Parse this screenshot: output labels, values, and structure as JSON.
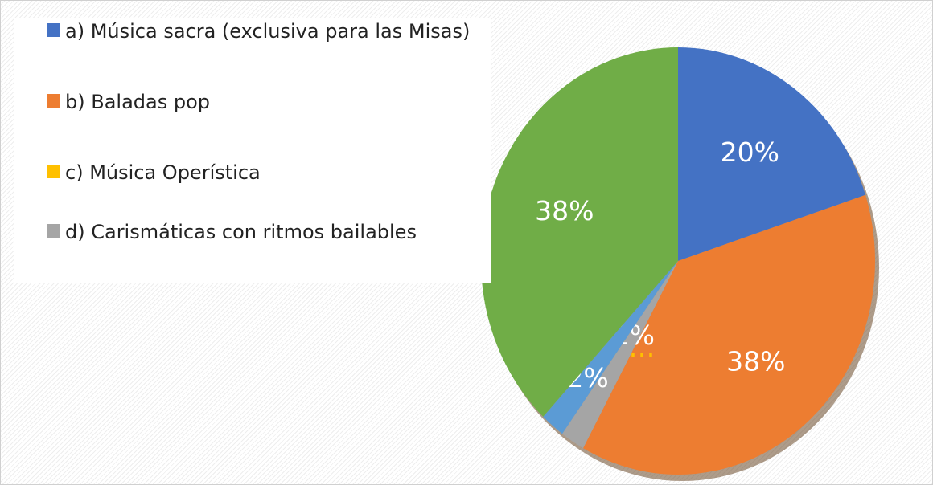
{
  "chart_data": {
    "type": "pie",
    "categories": [
      "a)    Música sacra (exclusiva para las Misas)",
      "b)    Baladas pop",
      "c)    Música Operística",
      "d)    Carismáticas con ritmos bailables",
      null,
      null
    ],
    "values": [
      20,
      38,
      0,
      2,
      2,
      38
    ],
    "value_labels": [
      "20%",
      "38%",
      "0…",
      "2%",
      "2%",
      "38%"
    ],
    "colors": [
      "#4472c4",
      "#ed7d31",
      "#ffc000",
      "#a5a5a5",
      "#5b9bd5",
      "#70ad47"
    ],
    "value_label_colors": [
      "#ffffff",
      "#ffffff",
      "#ffc000",
      "#ffffff",
      "#ffffff",
      "#ffffff"
    ],
    "legend": "top-left"
  }
}
